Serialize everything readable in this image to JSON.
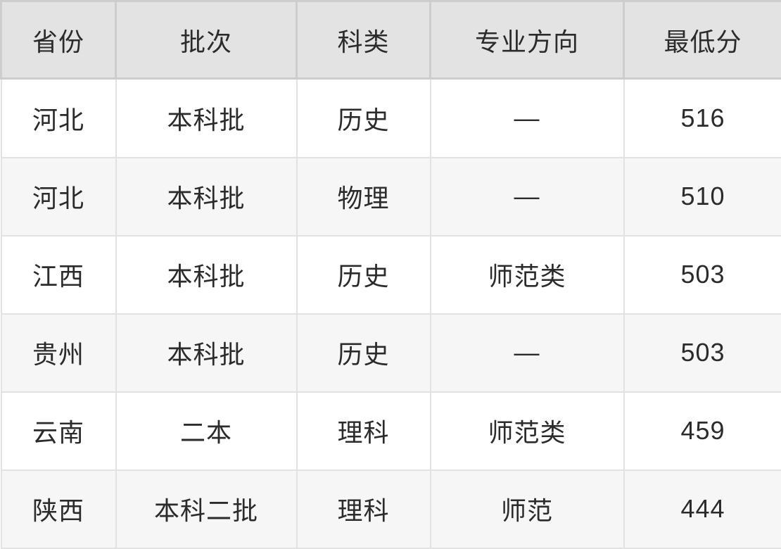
{
  "chart_data": {
    "type": "table",
    "title": "",
    "columns": [
      "省份",
      "批次",
      "科类",
      "专业方向",
      "最低分"
    ],
    "rows": [
      [
        "河北",
        "本科批",
        "历史",
        "—",
        "516"
      ],
      [
        "河北",
        "本科批",
        "物理",
        "—",
        "510"
      ],
      [
        "江西",
        "本科批",
        "历史",
        "师范类",
        "503"
      ],
      [
        "贵州",
        "本科批",
        "历史",
        "—",
        "503"
      ],
      [
        "云南",
        "二本",
        "理科",
        "师范类",
        "459"
      ],
      [
        "陕西",
        "本科二批",
        "理科",
        "师范",
        "444"
      ]
    ]
  },
  "colors": {
    "header_bg": "#e3e3e3",
    "header_border": "#cdcdcd",
    "body_border": "#e2e2e2",
    "row_bg_odd": "#ffffff",
    "row_bg_even": "#f6f6f6",
    "text": "#2b2b2b"
  }
}
